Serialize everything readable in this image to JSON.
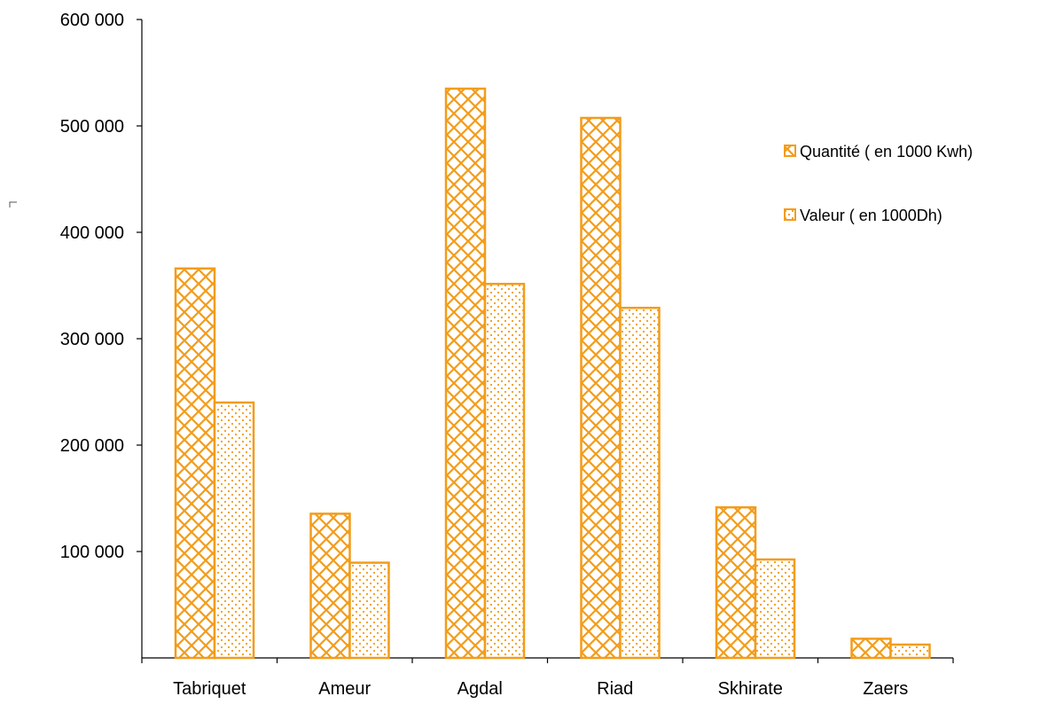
{
  "chart_data": {
    "type": "bar",
    "categories": [
      "Tabriquet",
      "Ameur",
      "Agdal",
      "Riad",
      "Skhirate",
      "Zaers"
    ],
    "series": [
      {
        "name": "Quantité ( en 1000 Kwh)",
        "pattern": "crosshatch",
        "values": [
          366000,
          135500,
          535000,
          507500,
          141500,
          18000
        ]
      },
      {
        "name": "Valeur ( en 1000Dh)",
        "pattern": "dots",
        "values": [
          240000,
          89500,
          351500,
          329000,
          92500,
          12500
        ]
      }
    ],
    "yticks": [
      100000,
      200000,
      300000,
      400000,
      500000,
      600000
    ],
    "ytick_labels": [
      "100 000",
      "200 000",
      "300 000",
      "400 000",
      "500 000",
      "600 000"
    ],
    "ylim": [
      0,
      600000
    ],
    "title": "",
    "xlabel": "",
    "ylabel": "",
    "legend_position": "right",
    "grid": false,
    "colors": {
      "bar_stroke": "#f39c1a",
      "pattern_line": "#f39c1a",
      "axis": "#000000"
    }
  }
}
